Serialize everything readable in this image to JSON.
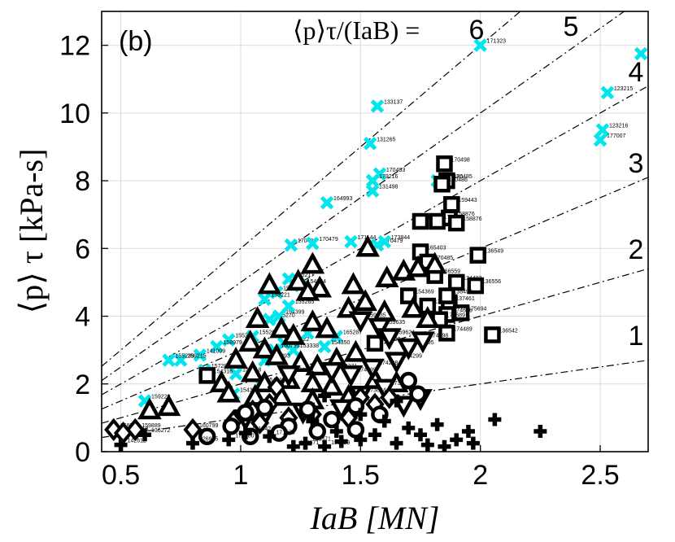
{
  "chart_data": {
    "type": "scatter",
    "panel_label": "(b)",
    "xlabel": "IaB [MN]",
    "ylabel": "⟨p⟩ τ [kPa-s]",
    "xlim": [
      0.42,
      2.7
    ],
    "ylim": [
      0,
      13
    ],
    "grid": true,
    "xticks": [
      0.5,
      1,
      1.5,
      2,
      2.5
    ],
    "xtick_labels": [
      "0.5",
      "1",
      "1.5",
      "2",
      "2.5"
    ],
    "yticks": [
      0,
      2,
      4,
      6,
      8,
      10,
      12
    ],
    "ytick_labels": [
      "0",
      "2",
      "4",
      "6",
      "8",
      "10",
      "12"
    ],
    "reference_lines": {
      "title_prefix": "⟨p⟩τ/(IaB) = ",
      "slopes": [
        1,
        2,
        3,
        4,
        5,
        6
      ],
      "labels": [
        "1",
        "2",
        "3",
        "4",
        "5",
        "6"
      ]
    },
    "series": [
      {
        "marker": "x-cross",
        "color": "#00e5ee",
        "points": [
          [
            2.0,
            12.0
          ],
          [
            2.67,
            11.75
          ],
          [
            2.53,
            10.6
          ],
          [
            1.57,
            10.2
          ],
          [
            2.51,
            9.5
          ],
          [
            2.5,
            9.2
          ],
          [
            1.54,
            9.1
          ],
          [
            1.58,
            8.2
          ],
          [
            1.55,
            8.0
          ],
          [
            1.55,
            7.7
          ],
          [
            1.82,
            8.0
          ],
          [
            1.36,
            7.35
          ],
          [
            1.21,
            6.1
          ],
          [
            1.3,
            6.15
          ],
          [
            1.46,
            6.2
          ],
          [
            1.57,
            6.1
          ],
          [
            1.6,
            6.2
          ],
          [
            1.2,
            5.1
          ],
          [
            1.25,
            4.9
          ],
          [
            1.15,
            4.7
          ],
          [
            1.1,
            4.5
          ],
          [
            0.95,
            3.3
          ],
          [
            0.9,
            3.1
          ],
          [
            0.83,
            2.85
          ],
          [
            0.75,
            2.7
          ],
          [
            0.7,
            2.7
          ],
          [
            0.85,
            2.4
          ],
          [
            0.98,
            2.3
          ],
          [
            1.05,
            3.4
          ],
          [
            1.12,
            3.9
          ],
          [
            1.18,
            3.2
          ],
          [
            1.22,
            3.0
          ],
          [
            1.28,
            3.5
          ],
          [
            1.4,
            3.4
          ],
          [
            1.08,
            2.0
          ],
          [
            0.97,
            1.7
          ],
          [
            0.6,
            1.5
          ],
          [
            1.14,
            3.0
          ],
          [
            1.16,
            4.0
          ],
          [
            1.2,
            4.3
          ],
          [
            1.35,
            3.1
          ],
          [
            1.1,
            2.7
          ]
        ],
        "labels": [
          "171323",
          "176999",
          "123215",
          "133137",
          "123216",
          "177007",
          "131265",
          "170483",
          "179216",
          "131498",
          "170486",
          "164993",
          "170486",
          "170479",
          "171144",
          "170479",
          "173844",
          "165217",
          "154884",
          "159221",
          "159221",
          "155269",
          "158979",
          "141009",
          "159215",
          "155239",
          "157289",
          "154318",
          "155268",
          "155270",
          "169722",
          "153338",
          "170328",
          "165287",
          "154316",
          "154318",
          "159220",
          "160795",
          "154399",
          "155265",
          "154350",
          "155293"
        ]
      },
      {
        "marker": "square",
        "color": "#000000",
        "points": [
          [
            1.85,
            8.5
          ],
          [
            1.86,
            8.0
          ],
          [
            1.84,
            7.9
          ],
          [
            1.88,
            7.3
          ],
          [
            1.87,
            6.9
          ],
          [
            1.75,
            6.8
          ],
          [
            1.82,
            6.8
          ],
          [
            1.9,
            6.75
          ],
          [
            1.75,
            5.9
          ],
          [
            1.78,
            5.6
          ],
          [
            1.99,
            5.8
          ],
          [
            1.81,
            5.2
          ],
          [
            1.98,
            4.9
          ],
          [
            1.87,
            4.4
          ],
          [
            1.92,
            4.1
          ],
          [
            1.86,
            4.05
          ],
          [
            1.83,
            3.9
          ],
          [
            1.86,
            3.5
          ],
          [
            2.05,
            3.45
          ],
          [
            1.56,
            3.2
          ],
          [
            0.86,
            2.25
          ],
          [
            1.7,
            4.6
          ],
          [
            1.78,
            4.3
          ],
          [
            1.86,
            4.6
          ],
          [
            1.9,
            5.0
          ]
        ],
        "labels": [
          "170498",
          "170485",
          "170486",
          "159443",
          "158876",
          "170476",
          "171227",
          "158876",
          "165403",
          "170485",
          "136549",
          "166559",
          "136556",
          "137461",
          "175694",
          "174686",
          "174689",
          "174489",
          "136542",
          "138548",
          "154318",
          "154369",
          "136553",
          "138499",
          "134403"
        ]
      },
      {
        "marker": "triangle-up",
        "color": "#000000",
        "points": [
          [
            1.53,
            6.0
          ],
          [
            1.3,
            5.5
          ],
          [
            1.24,
            5.0
          ],
          [
            1.33,
            4.8
          ],
          [
            1.12,
            4.9
          ],
          [
            1.28,
            4.7
          ],
          [
            1.47,
            4.9
          ],
          [
            1.61,
            5.1
          ],
          [
            1.68,
            5.3
          ],
          [
            1.74,
            5.4
          ],
          [
            1.81,
            5.5
          ],
          [
            1.07,
            3.9
          ],
          [
            1.17,
            3.6
          ],
          [
            1.22,
            3.4
          ],
          [
            1.3,
            3.8
          ],
          [
            1.36,
            3.6
          ],
          [
            1.45,
            4.2
          ],
          [
            1.52,
            4.4
          ],
          [
            1.6,
            4.1
          ],
          [
            1.72,
            4.2
          ],
          [
            1.78,
            3.9
          ],
          [
            1.04,
            3.2
          ],
          [
            1.1,
            3.0
          ],
          [
            1.15,
            2.8
          ],
          [
            1.25,
            2.6
          ],
          [
            1.32,
            2.5
          ],
          [
            1.4,
            2.7
          ],
          [
            1.48,
            2.9
          ],
          [
            0.98,
            2.7
          ],
          [
            1.05,
            2.3
          ],
          [
            1.1,
            2.0
          ],
          [
            1.2,
            2.1
          ],
          [
            1.3,
            2.0
          ],
          [
            1.38,
            1.9
          ],
          [
            0.92,
            2.0
          ],
          [
            0.95,
            1.7
          ],
          [
            1.06,
            1.6
          ],
          [
            1.17,
            1.6
          ],
          [
            1.3,
            1.5
          ],
          [
            1.45,
            1.6
          ],
          [
            0.62,
            1.2
          ],
          [
            0.7,
            1.3
          ],
          [
            1.56,
            2.1
          ],
          [
            1.65,
            2.0
          ]
        ],
        "labels": []
      },
      {
        "marker": "triangle-down",
        "color": "#000000",
        "points": [
          [
            1.5,
            3.9
          ],
          [
            1.58,
            3.7
          ],
          [
            1.62,
            3.4
          ],
          [
            1.7,
            3.1
          ],
          [
            1.76,
            3.3
          ],
          [
            1.65,
            2.7
          ],
          [
            1.55,
            2.5
          ],
          [
            1.46,
            2.3
          ],
          [
            1.38,
            2.4
          ],
          [
            1.2,
            2.3
          ],
          [
            1.6,
            1.9
          ],
          [
            1.5,
            1.7
          ],
          [
            1.75,
            1.6
          ],
          [
            1.68,
            1.4
          ],
          [
            1.42,
            1.3
          ],
          [
            1.26,
            1.2
          ],
          [
            1.1,
            1.1
          ],
          [
            1.02,
            1.0
          ]
        ],
        "labels": [
          "159635",
          "159635",
          "159624",
          "160795",
          "174298",
          "174299",
          "174298",
          "174299",
          "153371",
          "174671",
          "173031",
          "173824"
        ]
      },
      {
        "marker": "diamond",
        "color": "#000000",
        "points": [
          [
            0.47,
            0.65
          ],
          [
            0.51,
            0.55
          ],
          [
            0.56,
            0.65
          ],
          [
            0.8,
            0.65
          ],
          [
            0.97,
            0.9
          ],
          [
            1.05,
            1.2
          ],
          [
            1.12,
            1.4
          ],
          [
            1.2,
            1.0
          ],
          [
            1.3,
            1.1
          ],
          [
            1.45,
            1.0
          ],
          [
            1.5,
            1.6
          ],
          [
            1.56,
            1.4
          ],
          [
            1.62,
            1.6
          ],
          [
            1.08,
            0.85
          ],
          [
            1.15,
            1.9
          ]
        ],
        "labels": [
          "168854",
          "174118",
          "159889",
          "160799",
          "154313"
        ]
      },
      {
        "marker": "circle",
        "color": "#000000",
        "points": [
          [
            0.86,
            0.45
          ],
          [
            0.96,
            0.75
          ],
          [
            1.04,
            0.45
          ],
          [
            1.1,
            1.3
          ],
          [
            1.2,
            0.75
          ],
          [
            1.28,
            1.25
          ],
          [
            1.38,
            0.95
          ],
          [
            1.48,
            1.35
          ],
          [
            1.58,
            1.1
          ],
          [
            1.7,
            2.1
          ],
          [
            1.74,
            1.7
          ],
          [
            1.02,
            1.15
          ],
          [
            1.16,
            0.55
          ],
          [
            1.32,
            0.6
          ],
          [
            1.48,
            0.65
          ]
        ],
        "labels": []
      },
      {
        "marker": "plus",
        "color": "#000000",
        "points": [
          [
            0.5,
            0.2
          ],
          [
            0.6,
            0.5
          ],
          [
            0.8,
            0.25
          ],
          [
            0.95,
            0.35
          ],
          [
            1.02,
            0.55
          ],
          [
            1.12,
            0.45
          ],
          [
            1.22,
            0.15
          ],
          [
            1.27,
            0.25
          ],
          [
            1.35,
            0.15
          ],
          [
            1.42,
            0.3
          ],
          [
            1.5,
            0.35
          ],
          [
            1.56,
            0.5
          ],
          [
            1.65,
            0.25
          ],
          [
            1.75,
            0.5
          ],
          [
            1.78,
            0.2
          ],
          [
            1.85,
            0.15
          ],
          [
            1.95,
            0.6
          ],
          [
            1.97,
            0.25
          ],
          [
            2.06,
            0.95
          ],
          [
            2.25,
            0.6
          ],
          [
            1.6,
            0.9
          ],
          [
            1.5,
            1.1
          ],
          [
            1.3,
            0.9
          ],
          [
            1.4,
            0.6
          ],
          [
            1.7,
            0.7
          ],
          [
            1.82,
            0.8
          ],
          [
            1.9,
            0.35
          ],
          [
            1.65,
            1.5
          ],
          [
            1.35,
            1.65
          ]
        ],
        "labels": [
          "142612",
          "136272",
          "126935",
          "171880",
          "161542",
          "171676",
          "154671",
          "153371",
          "159829"
        ]
      }
    ]
  }
}
